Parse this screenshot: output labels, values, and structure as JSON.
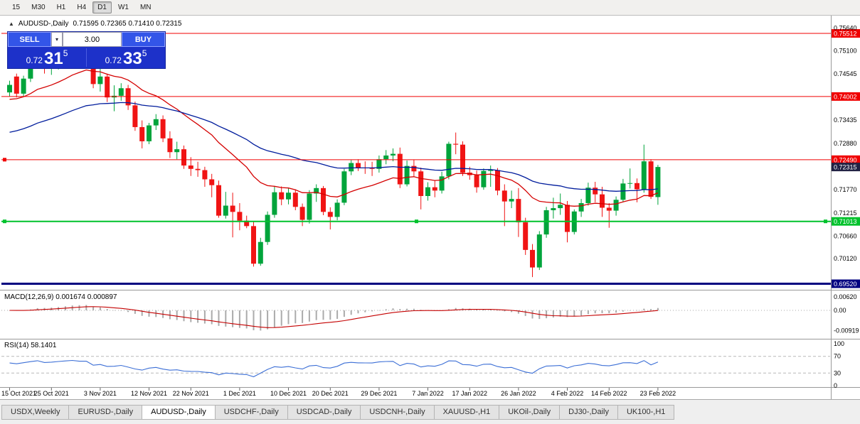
{
  "toolbar": {
    "timeframes": [
      {
        "label": "15",
        "active": false
      },
      {
        "label": "M30",
        "active": false
      },
      {
        "label": "H1",
        "active": false
      },
      {
        "label": "H4",
        "active": false
      },
      {
        "label": "D1",
        "active": true
      },
      {
        "label": "W1",
        "active": false
      },
      {
        "label": "MN",
        "active": false
      }
    ]
  },
  "chart_header": {
    "collapse_icon": "▲",
    "symbol": "AUDUSD-,Daily",
    "ohlc": "0.71595 0.72365 0.71410 0.72315"
  },
  "one_click": {
    "sell_label": "SELL",
    "buy_label": "BUY",
    "volume": "3.00",
    "dropdown_icon": "▾",
    "bid": {
      "prefix": "0.72",
      "big": "31",
      "sup": "5"
    },
    "ask": {
      "prefix": "0.72",
      "big": "33",
      "sup": "5"
    }
  },
  "colors": {
    "bull": "#00A43B",
    "bear": "#F01414",
    "macd_hist": "#ABABAB",
    "macd_signal": "#C40000",
    "rsi": "#3C6FD6",
    "current_label_bg": "#222244",
    "panel_blue": "#1D31C9"
  },
  "tabs": [
    {
      "label": "USDX,Weekly",
      "active": false
    },
    {
      "label": "EURUSD-,Daily",
      "active": false
    },
    {
      "label": "AUDUSD-,Daily",
      "active": true
    },
    {
      "label": "USDCHF-,Daily",
      "active": false
    },
    {
      "label": "USDCAD-,Daily",
      "active": false
    },
    {
      "label": "USDCNH-,Daily",
      "active": false
    },
    {
      "label": "XAUUSD-,H1",
      "active": false
    },
    {
      "label": "UKOil-,Daily",
      "active": false
    },
    {
      "label": "DJ30-,Daily",
      "active": false
    },
    {
      "label": "UK100-,H1",
      "active": false
    }
  ],
  "chart_data": {
    "type": "candlestick",
    "title": "AUDUSD-,Daily",
    "ohlc_header": {
      "open": "0.71595",
      "high": "0.72365",
      "low": "0.71410",
      "close": "0.72315"
    },
    "price_axis_ticks": [
      "0.75640",
      "0.75100",
      "0.74545",
      "0.73435",
      "0.72880",
      "0.71770",
      "0.71215",
      "0.70660",
      "0.70120"
    ],
    "date_labels": [
      {
        "index": 0,
        "label": "15 Oct 2021"
      },
      {
        "index": 6,
        "label": "25 Oct 2021"
      },
      {
        "index": 13,
        "label": "3 Nov 2021"
      },
      {
        "index": 20,
        "label": "12 Nov 2021"
      },
      {
        "index": 26,
        "label": "22 Nov 2021"
      },
      {
        "index": 33,
        "label": "1 Dec 2021"
      },
      {
        "index": 40,
        "label": "10 Dec 2021"
      },
      {
        "index": 46,
        "label": "20 Dec 2021"
      },
      {
        "index": 53,
        "label": "29 Dec 2021"
      },
      {
        "index": 60,
        "label": "7 Jan 2022"
      },
      {
        "index": 66,
        "label": "17 Jan 2022"
      },
      {
        "index": 73,
        "label": "26 Jan 2022"
      },
      {
        "index": 80,
        "label": "4 Feb 2022"
      },
      {
        "index": 86,
        "label": "14 Feb 2022"
      },
      {
        "index": 93,
        "label": "23 Feb 2022"
      }
    ],
    "hlines": [
      {
        "value": 0.75512,
        "label": "0.75512",
        "color": "#F00000",
        "width": 1,
        "markers": "none"
      },
      {
        "value": 0.74002,
        "label": "0.74002",
        "color": "#F00000",
        "width": 1,
        "markers": "none"
      },
      {
        "value": 0.7249,
        "label": "0.72490",
        "color": "#F00000",
        "width": 1,
        "markers": "left"
      },
      {
        "value": 0.71013,
        "label": "0.71013",
        "color": "#00C22C",
        "width": 2,
        "markers": "ends"
      },
      {
        "value": 0.6952,
        "label": "0.69520",
        "color": "#000080",
        "width": 3,
        "markers": "none"
      }
    ],
    "current_price": {
      "value": 0.72315,
      "label": "0.72315"
    },
    "moving_averages": [
      {
        "period": 20,
        "color": "#D40000",
        "seed": 0.739
      },
      {
        "period": 50,
        "color": "#001C9C",
        "seed": 0.731
      }
    ],
    "indicators": {
      "macd": {
        "label": "MACD(12,26,9) 0.001674 0.000897",
        "fast": 12,
        "slow": 26,
        "signal": 9,
        "axis_ticks": [
          "0.00620",
          "0.00",
          "-0.00919"
        ]
      },
      "rsi": {
        "label": "RSI(14) 58.1401",
        "period": 14,
        "axis_ticks": [
          "100",
          "70",
          "30",
          "0"
        ],
        "levels": [
          70,
          30
        ]
      }
    },
    "candles": [
      [
        0.741,
        0.7438,
        0.74,
        0.7428
      ],
      [
        0.7448,
        0.7455,
        0.7398,
        0.7407
      ],
      [
        0.7407,
        0.745,
        0.74,
        0.7443
      ],
      [
        0.7443,
        0.749,
        0.7435,
        0.748
      ],
      [
        0.748,
        0.7547,
        0.7472,
        0.7515
      ],
      [
        0.7515,
        0.7522,
        0.7455,
        0.7468
      ],
      [
        0.7468,
        0.749,
        0.7452,
        0.748
      ],
      [
        0.748,
        0.7507,
        0.7465,
        0.7501
      ],
      [
        0.7501,
        0.753,
        0.749,
        0.7518
      ],
      [
        0.7518,
        0.7541,
        0.75,
        0.7535
      ],
      [
        0.7535,
        0.7551,
        0.7505,
        0.7518
      ],
      [
        0.7518,
        0.7536,
        0.749,
        0.7521
      ],
      [
        0.7521,
        0.7535,
        0.742,
        0.743
      ],
      [
        0.743,
        0.7469,
        0.7412,
        0.7448
      ],
      [
        0.7448,
        0.7455,
        0.7387,
        0.7398
      ],
      [
        0.7398,
        0.7427,
        0.7365,
        0.7402
      ],
      [
        0.7402,
        0.7432,
        0.739,
        0.742
      ],
      [
        0.742,
        0.7428,
        0.7368,
        0.7379
      ],
      [
        0.7379,
        0.7388,
        0.7318,
        0.7327
      ],
      [
        0.7327,
        0.7343,
        0.7276,
        0.7293
      ],
      [
        0.7293,
        0.7337,
        0.7286,
        0.7331
      ],
      [
        0.7331,
        0.7358,
        0.732,
        0.7346
      ],
      [
        0.7346,
        0.7355,
        0.7291,
        0.73
      ],
      [
        0.73,
        0.7317,
        0.7253,
        0.7267
      ],
      [
        0.7267,
        0.7292,
        0.725,
        0.7274
      ],
      [
        0.7274,
        0.7283,
        0.7227,
        0.7235
      ],
      [
        0.7235,
        0.7255,
        0.721,
        0.7227
      ],
      [
        0.7227,
        0.7244,
        0.7208,
        0.7224
      ],
      [
        0.7224,
        0.7232,
        0.7184,
        0.7202
      ],
      [
        0.7202,
        0.7215,
        0.7159,
        0.7188
      ],
      [
        0.7188,
        0.7199,
        0.711,
        0.7115
      ],
      [
        0.7115,
        0.7172,
        0.7108,
        0.7139
      ],
      [
        0.7139,
        0.717,
        0.7063,
        0.7124
      ],
      [
        0.7124,
        0.7145,
        0.708,
        0.7103
      ],
      [
        0.7103,
        0.7115,
        0.7085,
        0.709
      ],
      [
        0.709,
        0.7102,
        0.6993,
        0.7
      ],
      [
        0.7,
        0.7062,
        0.6995,
        0.7052
      ],
      [
        0.7052,
        0.7125,
        0.7045,
        0.7117
      ],
      [
        0.7117,
        0.7185,
        0.711,
        0.7171
      ],
      [
        0.7171,
        0.7185,
        0.714,
        0.7154
      ],
      [
        0.7154,
        0.718,
        0.7142,
        0.717
      ],
      [
        0.717,
        0.7178,
        0.7128,
        0.7136
      ],
      [
        0.7136,
        0.7144,
        0.709,
        0.7105
      ],
      [
        0.7105,
        0.7176,
        0.7096,
        0.7168
      ],
      [
        0.7168,
        0.719,
        0.7148,
        0.7181
      ],
      [
        0.7181,
        0.7186,
        0.7116,
        0.7124
      ],
      [
        0.7124,
        0.7135,
        0.7082,
        0.7112
      ],
      [
        0.7112,
        0.7154,
        0.7104,
        0.7146
      ],
      [
        0.7146,
        0.7227,
        0.714,
        0.7221
      ],
      [
        0.7221,
        0.7248,
        0.7212,
        0.7241
      ],
      [
        0.7241,
        0.725,
        0.7222,
        0.723
      ],
      [
        0.723,
        0.7245,
        0.7215,
        0.7229
      ],
      [
        0.7229,
        0.7244,
        0.721,
        0.7227
      ],
      [
        0.7227,
        0.7259,
        0.7218,
        0.725
      ],
      [
        0.725,
        0.7272,
        0.7238,
        0.7259
      ],
      [
        0.7259,
        0.7276,
        0.7245,
        0.7263
      ],
      [
        0.7263,
        0.7278,
        0.7181,
        0.719
      ],
      [
        0.719,
        0.7247,
        0.7185,
        0.7234
      ],
      [
        0.7234,
        0.7249,
        0.7209,
        0.7221
      ],
      [
        0.7221,
        0.723,
        0.713,
        0.7162
      ],
      [
        0.7162,
        0.7195,
        0.7151,
        0.7183
      ],
      [
        0.7183,
        0.7199,
        0.7159,
        0.7175
      ],
      [
        0.7175,
        0.722,
        0.7168,
        0.7209
      ],
      [
        0.7209,
        0.7292,
        0.7202,
        0.7287
      ],
      [
        0.7287,
        0.7314,
        0.7262,
        0.7285
      ],
      [
        0.7285,
        0.7293,
        0.721,
        0.7218
      ],
      [
        0.7218,
        0.7232,
        0.7201,
        0.7212
      ],
      [
        0.7212,
        0.7223,
        0.717,
        0.7183
      ],
      [
        0.7183,
        0.7228,
        0.7177,
        0.7222
      ],
      [
        0.7222,
        0.7235,
        0.7184,
        0.7224
      ],
      [
        0.7224,
        0.7229,
        0.7164,
        0.7175
      ],
      [
        0.7175,
        0.719,
        0.709,
        0.7149
      ],
      [
        0.7149,
        0.7175,
        0.7133,
        0.7155
      ],
      [
        0.7155,
        0.7181,
        0.7064,
        0.7099
      ],
      [
        0.7099,
        0.711,
        0.7021,
        0.7033
      ],
      [
        0.7033,
        0.7047,
        0.6968,
        0.6991
      ],
      [
        0.6991,
        0.7078,
        0.6985,
        0.707
      ],
      [
        0.707,
        0.7136,
        0.7062,
        0.7128
      ],
      [
        0.7128,
        0.7158,
        0.7108,
        0.7133
      ],
      [
        0.7133,
        0.7168,
        0.7117,
        0.7141
      ],
      [
        0.7141,
        0.715,
        0.7051,
        0.7076
      ],
      [
        0.7076,
        0.713,
        0.707,
        0.7125
      ],
      [
        0.7125,
        0.7155,
        0.7112,
        0.7145
      ],
      [
        0.7145,
        0.7194,
        0.7139,
        0.7182
      ],
      [
        0.7182,
        0.7196,
        0.7147,
        0.7166
      ],
      [
        0.7166,
        0.7184,
        0.7112,
        0.7134
      ],
      [
        0.7134,
        0.7145,
        0.7086,
        0.7127
      ],
      [
        0.7127,
        0.7161,
        0.7115,
        0.7153
      ],
      [
        0.7153,
        0.7203,
        0.7147,
        0.7192
      ],
      [
        0.7192,
        0.7228,
        0.718,
        0.7193
      ],
      [
        0.7193,
        0.7204,
        0.7147,
        0.7178
      ],
      [
        0.7178,
        0.7285,
        0.717,
        0.7245
      ],
      [
        0.7245,
        0.725,
        0.7155,
        0.716
      ],
      [
        0.71595,
        0.72365,
        0.7141,
        0.72315
      ]
    ]
  }
}
